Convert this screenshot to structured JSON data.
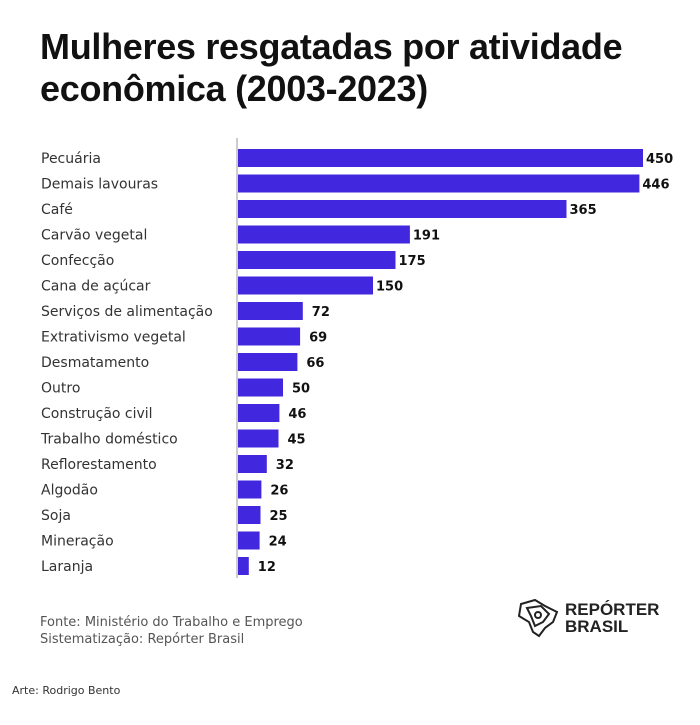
{
  "chart_data": {
    "type": "bar",
    "orientation": "horizontal",
    "title": "Mulheres resgatadas por atividade econômica (2003-2023)",
    "categories": [
      "Pecuária",
      "Demais lavouras",
      "Café",
      "Carvão vegetal",
      "Confecção",
      "Cana de açúcar",
      "Serviços de alimentação",
      "Extrativismo vegetal",
      "Desmatamento",
      "Outro",
      "Construção civil",
      "Trabalho doméstico",
      "Reflorestamento",
      "Algodão",
      "Soja",
      "Mineração",
      "Laranja"
    ],
    "values": [
      450,
      446,
      365,
      191,
      175,
      150,
      72,
      69,
      66,
      50,
      46,
      45,
      32,
      26,
      25,
      24,
      12
    ],
    "xlim": [
      0,
      450
    ],
    "grid": false,
    "data_labels": true,
    "bar_color": "#4127dd"
  },
  "footer": {
    "source": "Fonte: Ministério do Trabalho e Emprego",
    "systematization": "Sistematização: Repórter Brasil",
    "credit": "Arte: Rodrigo Bento"
  },
  "logo": {
    "line1": "REPÓRTER",
    "line2": "BRASIL"
  }
}
